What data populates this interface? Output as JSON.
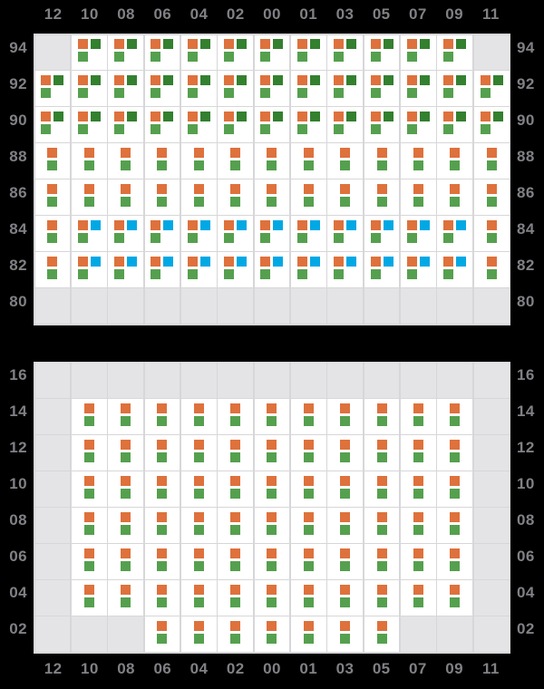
{
  "background_color": "#000000",
  "colors": {
    "orange": "#de713c",
    "dark_green": "#33802f",
    "green": "#55a04e",
    "blue": "#00a8e4",
    "cell_filled": "#ffffff",
    "cell_empty": "#e4e4e6",
    "grid_line": "#d7d7d9",
    "label_text": "#808085"
  },
  "chart_data": [
    {
      "type": "heatmap",
      "position": "upper",
      "x_axis_side": "top",
      "x_tick_labels": [
        "12",
        "10",
        "08",
        "06",
        "04",
        "02",
        "00",
        "01",
        "03",
        "05",
        "07",
        "09",
        "11"
      ],
      "y_axis_sides": [
        "left",
        "right"
      ],
      "y_tick_labels": [
        "94",
        "92",
        "90",
        "88",
        "86",
        "84",
        "82",
        "80"
      ],
      "cell_code_legend": {
        "o": "orange square, top-left",
        "d": "dark-green square, top-right",
        "b": "blue square, top-right",
        "g": "green square, bottom-left",
        "": "empty gray cell"
      },
      "rows": [
        {
          "y": "94",
          "cells": [
            "",
            "odg",
            "odg",
            "odg",
            "odg",
            "odg",
            "odg",
            "odg",
            "odg",
            "odg",
            "odg",
            "odg",
            ""
          ]
        },
        {
          "y": "92",
          "cells": [
            "odg",
            "odg",
            "odg",
            "odg",
            "odg",
            "odg",
            "odg",
            "odg",
            "odg",
            "odg",
            "odg",
            "odg",
            "odg"
          ]
        },
        {
          "y": "90",
          "cells": [
            "odg",
            "odg",
            "odg",
            "odg",
            "odg",
            "odg",
            "odg",
            "odg",
            "odg",
            "odg",
            "odg",
            "odg",
            "odg"
          ]
        },
        {
          "y": "88",
          "cells": [
            "og",
            "og",
            "og",
            "og",
            "og",
            "og",
            "og",
            "og",
            "og",
            "og",
            "og",
            "og",
            "og"
          ]
        },
        {
          "y": "86",
          "cells": [
            "og",
            "og",
            "og",
            "og",
            "og",
            "og",
            "og",
            "og",
            "og",
            "og",
            "og",
            "og",
            "og"
          ]
        },
        {
          "y": "84",
          "cells": [
            "og",
            "obg",
            "obg",
            "obg",
            "obg",
            "obg",
            "obg",
            "obg",
            "obg",
            "obg",
            "obg",
            "obg",
            "og"
          ]
        },
        {
          "y": "82",
          "cells": [
            "og",
            "obg",
            "obg",
            "obg",
            "obg",
            "obg",
            "obg",
            "obg",
            "obg",
            "obg",
            "obg",
            "obg",
            "og"
          ]
        },
        {
          "y": "80",
          "cells": [
            "",
            "",
            "",
            "",
            "",
            "",
            "",
            "",
            "",
            "",
            "",
            "",
            ""
          ]
        }
      ]
    },
    {
      "type": "heatmap",
      "position": "lower",
      "x_axis_side": "bottom",
      "x_tick_labels": [
        "12",
        "10",
        "08",
        "06",
        "04",
        "02",
        "00",
        "01",
        "03",
        "05",
        "07",
        "09",
        "11"
      ],
      "y_axis_sides": [
        "left",
        "right"
      ],
      "y_tick_labels": [
        "16",
        "14",
        "12",
        "10",
        "08",
        "06",
        "04",
        "02"
      ],
      "cell_code_legend": {
        "o": "orange square, top",
        "g": "green square, bottom",
        "": "empty gray cell"
      },
      "rows": [
        {
          "y": "16",
          "cells": [
            "",
            "",
            "",
            "",
            "",
            "",
            "",
            "",
            "",
            "",
            "",
            "",
            ""
          ]
        },
        {
          "y": "14",
          "cells": [
            "",
            "og",
            "og",
            "og",
            "og",
            "og",
            "og",
            "og",
            "og",
            "og",
            "og",
            "og",
            ""
          ]
        },
        {
          "y": "12",
          "cells": [
            "",
            "og",
            "og",
            "og",
            "og",
            "og",
            "og",
            "og",
            "og",
            "og",
            "og",
            "og",
            ""
          ]
        },
        {
          "y": "10",
          "cells": [
            "",
            "og",
            "og",
            "og",
            "og",
            "og",
            "og",
            "og",
            "og",
            "og",
            "og",
            "og",
            ""
          ]
        },
        {
          "y": "08",
          "cells": [
            "",
            "og",
            "og",
            "og",
            "og",
            "og",
            "og",
            "og",
            "og",
            "og",
            "og",
            "og",
            ""
          ]
        },
        {
          "y": "06",
          "cells": [
            "",
            "og",
            "og",
            "og",
            "og",
            "og",
            "og",
            "og",
            "og",
            "og",
            "og",
            "og",
            ""
          ]
        },
        {
          "y": "04",
          "cells": [
            "",
            "og",
            "og",
            "og",
            "og",
            "og",
            "og",
            "og",
            "og",
            "og",
            "og",
            "og",
            ""
          ]
        },
        {
          "y": "02",
          "cells": [
            "",
            "",
            "",
            "og",
            "og",
            "og",
            "og",
            "og",
            "og",
            "og",
            "",
            "",
            ""
          ]
        }
      ]
    }
  ]
}
